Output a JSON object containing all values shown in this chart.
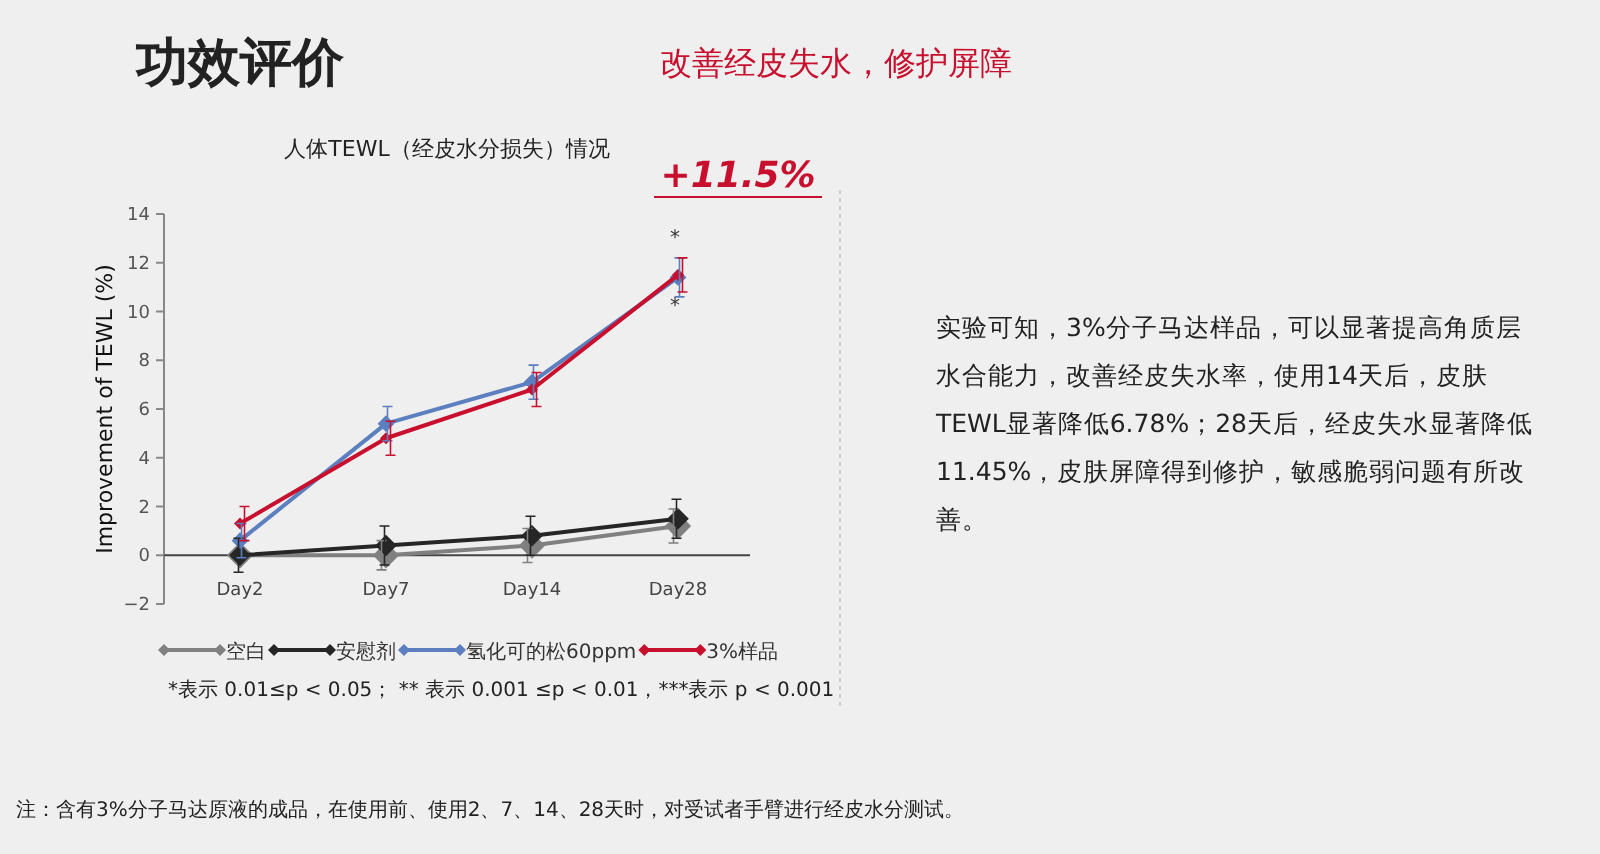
{
  "chart_data": {
    "type": "line",
    "title": "人体TEWL（经皮水分损失）情况",
    "ylabel": "Improvement of TEWL (%)",
    "categories": [
      "Day2",
      "Day7",
      "Day14",
      "Day28"
    ],
    "series": [
      {
        "name": "空白",
        "color": "#808080",
        "values": [
          0,
          0,
          0.4,
          1.2
        ],
        "errors": [
          null,
          0.6,
          0.7,
          0.7
        ]
      },
      {
        "name": "安慰剂",
        "color": "#262626",
        "values": [
          0,
          0.4,
          0.8,
          1.5
        ],
        "errors": [
          0.7,
          0.8,
          0.8,
          0.8
        ]
      },
      {
        "name": "氢化可的松60ppm",
        "color": "#5b7fbf",
        "values": [
          0.6,
          5.4,
          7.1,
          11.4
        ],
        "errors": [
          0.7,
          0.7,
          0.7,
          0.8
        ]
      },
      {
        "name": "3%样品",
        "color": "#c8102e",
        "values": [
          1.3,
          4.8,
          6.8,
          11.5
        ],
        "errors": [
          0.7,
          0.7,
          0.7,
          0.7
        ]
      }
    ],
    "ylim": [
      -2,
      14
    ],
    "yticks": [
      -2,
      0,
      2,
      4,
      6,
      8,
      10,
      12,
      14
    ],
    "legend": "bottom",
    "marker": "diamond",
    "line_style": "solid",
    "grid": false,
    "annotations": [
      "功效评价",
      "改善经皮失水，修护屏障",
      {
        "text": "+11.5%",
        "x": "Day28",
        "y": 11.5
      },
      "*",
      "*",
      "实验可知，3%分子马达样品，可以显著提高角质层水合能力，改善经皮失水率，使用14天后，皮肤TEWL显著降低6.78%；28天后，经皮失水显著降低11.45%，皮肤屏障得到修护，敏感脆弱问题有所改善。",
      "*表示 0.01≤p < 0.05； ** 表示 0.001 ≤p < 0.01，***表示 p < 0.001",
      "注：含有3%分子马达原液的成品，在使用前、使用2、7、14、28天时，对受试者手臂进行经皮水分测试。"
    ]
  }
}
